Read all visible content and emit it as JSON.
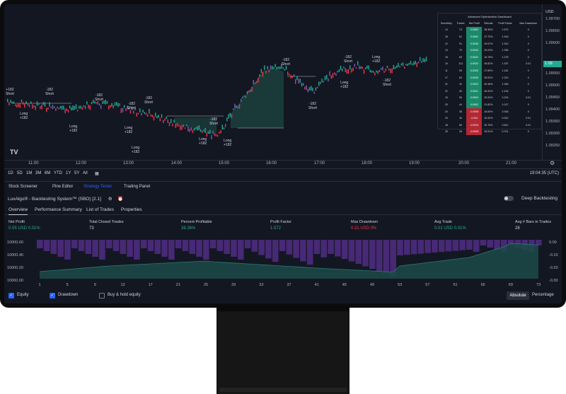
{
  "price_axis": {
    "currency": "USD",
    "labels": [
      "1.09700",
      "1.09650",
      "1.09600",
      "1.09550",
      "1.09500",
      "1.09450",
      "1.09400",
      "1.09350",
      "1.09300",
      "1.09250"
    ],
    "current": "1.09"
  },
  "time_axis": [
    "11:00",
    "12:00",
    "13:00",
    "14:00",
    "15:00",
    "16:00",
    "17:00",
    "18:00",
    "19:00",
    "20:00",
    "21:00"
  ],
  "timeframes": [
    "1D",
    "5D",
    "1M",
    "3M",
    "6M",
    "YTD",
    "1Y",
    "5Y",
    "All"
  ],
  "clock": "19:04:35 (UTC)",
  "tabs": [
    "Stock Screener",
    "Pine Editor",
    "Strategy Tester",
    "Trading Panel"
  ],
  "strategy_title": "LuxAlgo® - Backtesting System™ (SBO) [2.1]",
  "deep_backtesting": "Deep Backtesting",
  "subtabs": [
    "Overview",
    "Performance Summary",
    "List of Trades",
    "Properties"
  ],
  "metrics": [
    {
      "label": "Net Profit",
      "value": "0.55 USD",
      "pct": "0.01%",
      "color": "green"
    },
    {
      "label": "Total Closed Trades",
      "value": "73",
      "pct": "",
      "color": "white"
    },
    {
      "label": "Percent Profitable",
      "value": "38.36%",
      "pct": "",
      "color": "green"
    },
    {
      "label": "Profit Factor",
      "value": "1.572",
      "pct": "",
      "color": "green"
    },
    {
      "label": "Max Drawdown",
      "value": "0.31 USD",
      "pct": "0%",
      "color": "red"
    },
    {
      "label": "Avg Trade",
      "value": "0.01 USD",
      "pct": "0.01%",
      "color": "green"
    },
    {
      "label": "Avg # Bars in Trades",
      "value": "28",
      "pct": "",
      "color": "white"
    }
  ],
  "equity_left_axis": [
    "10000.60",
    "10000.40",
    "10000.20",
    "10000.00"
  ],
  "equity_right_axis": [
    "0.00",
    "-0.10",
    "-0.20",
    "-0.30"
  ],
  "equity_x_labels": [
    "1",
    "5",
    "9",
    "13",
    "17",
    "21",
    "25",
    "29",
    "33",
    "37",
    "41",
    "45",
    "49",
    "53",
    "57",
    "61",
    "65",
    "69",
    "73"
  ],
  "footer": {
    "equity": "Equity",
    "drawdown": "Drawdown",
    "buyhold": "Buy & hold equity",
    "absolute": "Absolute",
    "percentage": "Percentage"
  },
  "opt_table": {
    "title": "Advanced Optimization Dashboard",
    "headers": [
      "Sensitivity",
      "Trades",
      "Net Profit",
      "Winrate",
      "Profit Factor",
      "Max Drawdown"
    ],
    "rows": [
      [
        "14",
        "73",
        "0.0063",
        "38.36%",
        "1.572",
        "0"
      ],
      [
        "16",
        "61",
        "0.0052",
        "37.70%",
        "1.516",
        "0"
      ],
      [
        "12",
        "91",
        "0.0046",
        "29.67%",
        "1.322",
        "0"
      ],
      [
        "13",
        "79",
        "0.0043",
        "29.24%",
        "1.336",
        "0"
      ],
      [
        "15",
        "69",
        "0.0032",
        "34.78%",
        "1.276",
        "0"
      ],
      [
        "10",
        "113",
        "0.0022",
        "35.82%",
        "1.187",
        "0.01"
      ],
      [
        "11",
        "95",
        "0.0028",
        "27.89%",
        "1.181",
        "0"
      ],
      [
        "17",
        "60",
        "0.0026",
        "35.00%",
        "1.210",
        "0"
      ],
      [
        "21",
        "42",
        "0.0022",
        "40.48%",
        "1.266",
        "0"
      ],
      [
        "22",
        "40",
        "0.0011",
        "40.00%",
        "1.194",
        "0"
      ],
      [
        "19",
        "50",
        "0.0004",
        "32.00%",
        "1.024",
        "0.01"
      ],
      [
        "20",
        "44",
        "0.0002",
        "31.82%",
        "1.017",
        "0"
      ],
      [
        "24",
        "38",
        "-0.0006",
        "34.84%",
        "0.928",
        "0"
      ],
      [
        "23",
        "40",
        "-0.001",
        "32.00%",
        "0.922",
        "0.01"
      ],
      [
        "18",
        "56",
        "-0.0012",
        "32.76%",
        "0.821",
        "0.01"
      ],
      [
        "25",
        "28",
        "-0.0039",
        "34.51%",
        "0.701",
        "0"
      ]
    ]
  },
  "annotations": [
    {
      "text": "+182\nShort"
    },
    {
      "text": "-182\nShort"
    },
    {
      "text": "Long\n+182"
    },
    {
      "text": "-182\nShort"
    },
    {
      "text": "-182\nShort"
    },
    {
      "text": "Long\n+182"
    },
    {
      "text": "Long\n+182"
    },
    {
      "text": "-182\nShort"
    },
    {
      "text": "-182\nShort"
    },
    {
      "text": "Long\n+182"
    },
    {
      "text": "Long\n+182"
    },
    {
      "text": "-182\nShort"
    },
    {
      "text": "-182\nShort"
    },
    {
      "text": "Long\n+182"
    },
    {
      "text": "-182\nShort"
    },
    {
      "text": "Long\n+182"
    },
    {
      "text": "-182\nShort"
    },
    {
      "text": "Long\n+182"
    }
  ],
  "colors": {
    "up": "#22ab94",
    "down": "#f23645",
    "purple": "#7e57c2",
    "blue": "#2962ff"
  }
}
